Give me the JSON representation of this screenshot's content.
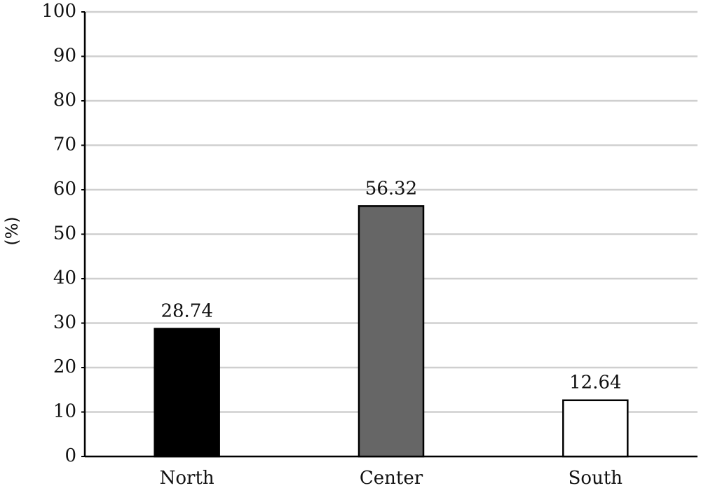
{
  "chart_data": {
    "type": "bar",
    "y_label": "(%)",
    "categories": [
      "North",
      "Center",
      "South"
    ],
    "values": [
      28.74,
      56.32,
      12.64
    ],
    "colors": [
      "#000000",
      "#666666",
      "#ffffff"
    ],
    "ylim": [
      0,
      100
    ],
    "yticks": [
      0,
      10,
      20,
      30,
      40,
      50,
      60,
      70,
      80,
      90,
      100
    ],
    "grid": true
  }
}
